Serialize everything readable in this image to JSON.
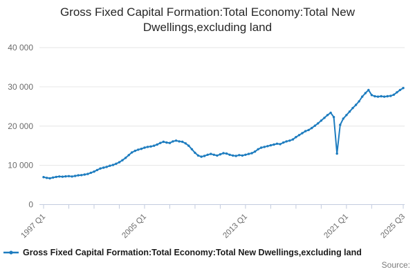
{
  "header": {
    "title": "Gross Fixed Capital Formation:Total Economy:Total New Dwellings,excluding land"
  },
  "legend": {
    "label": "Gross Fixed Capital Formation:Total Economy:Total New Dwellings,excluding land",
    "marker_color": "#1d7cbf"
  },
  "footer": {
    "source_label": "Source:"
  },
  "colors": {
    "line": "#1d7cbf",
    "gridline": "#e6e6e6",
    "axis": "#c2cbde",
    "tick_text": "#6b6b6b",
    "title_text": "#262626"
  },
  "chart_data": {
    "type": "line",
    "title": "Gross Fixed Capital Formation:Total Economy:Total New Dwellings,excluding land",
    "xlabel": "",
    "ylabel": "",
    "frequency": "quarterly",
    "x_start": "1997 Q1",
    "x_end": "2025 Q3",
    "ylim": [
      0,
      40000
    ],
    "grid": "horizontal",
    "legend_position": "bottom-left",
    "y_ticks": [
      {
        "value": 0,
        "label": "0"
      },
      {
        "value": 10000,
        "label": "10 000"
      },
      {
        "value": 20000,
        "label": "20 000"
      },
      {
        "value": 30000,
        "label": "30 000"
      },
      {
        "value": 40000,
        "label": "40 000"
      }
    ],
    "x_ticks": [
      {
        "index": 0,
        "label": "1997 Q1"
      },
      {
        "index": 32,
        "label": "2005 Q1"
      },
      {
        "index": 64,
        "label": "2013 Q1"
      },
      {
        "index": 96,
        "label": "2021 Q1"
      },
      {
        "index": 114,
        "label": "2025 Q3"
      }
    ],
    "x_minor_tick_indices": [
      0,
      8,
      16,
      24,
      32,
      40,
      48,
      56,
      64,
      72,
      80,
      88,
      96,
      104,
      114
    ],
    "series": [
      {
        "name": "Gross Fixed Capital Formation:Total Economy:Total New Dwellings,excluding land",
        "color": "#1d7cbf",
        "values": [
          7000,
          6800,
          6700,
          6900,
          7050,
          7150,
          7100,
          7200,
          7250,
          7150,
          7300,
          7450,
          7500,
          7650,
          7800,
          8100,
          8400,
          8800,
          9200,
          9400,
          9600,
          9900,
          10100,
          10400,
          10800,
          11300,
          11900,
          12600,
          13300,
          13700,
          14000,
          14200,
          14500,
          14700,
          14800,
          15000,
          15300,
          15700,
          16000,
          15800,
          15700,
          16100,
          16300,
          16100,
          16000,
          15600,
          15000,
          14100,
          13200,
          12500,
          12200,
          12400,
          12700,
          12900,
          12700,
          12500,
          12800,
          13100,
          13000,
          12700,
          12500,
          12400,
          12600,
          12500,
          12700,
          12900,
          13100,
          13500,
          14100,
          14500,
          14700,
          14900,
          15100,
          15300,
          15500,
          15400,
          15800,
          16100,
          16300,
          16600,
          17200,
          17700,
          18200,
          18700,
          19000,
          19500,
          20100,
          20700,
          21400,
          22100,
          22800,
          23400,
          22300,
          13000,
          20300,
          21900,
          22800,
          23700,
          24600,
          25400,
          26300,
          27500,
          28400,
          29200,
          27900,
          27600,
          27500,
          27600,
          27500,
          27600,
          27700,
          28000,
          28600,
          29200,
          29700
        ]
      }
    ]
  }
}
